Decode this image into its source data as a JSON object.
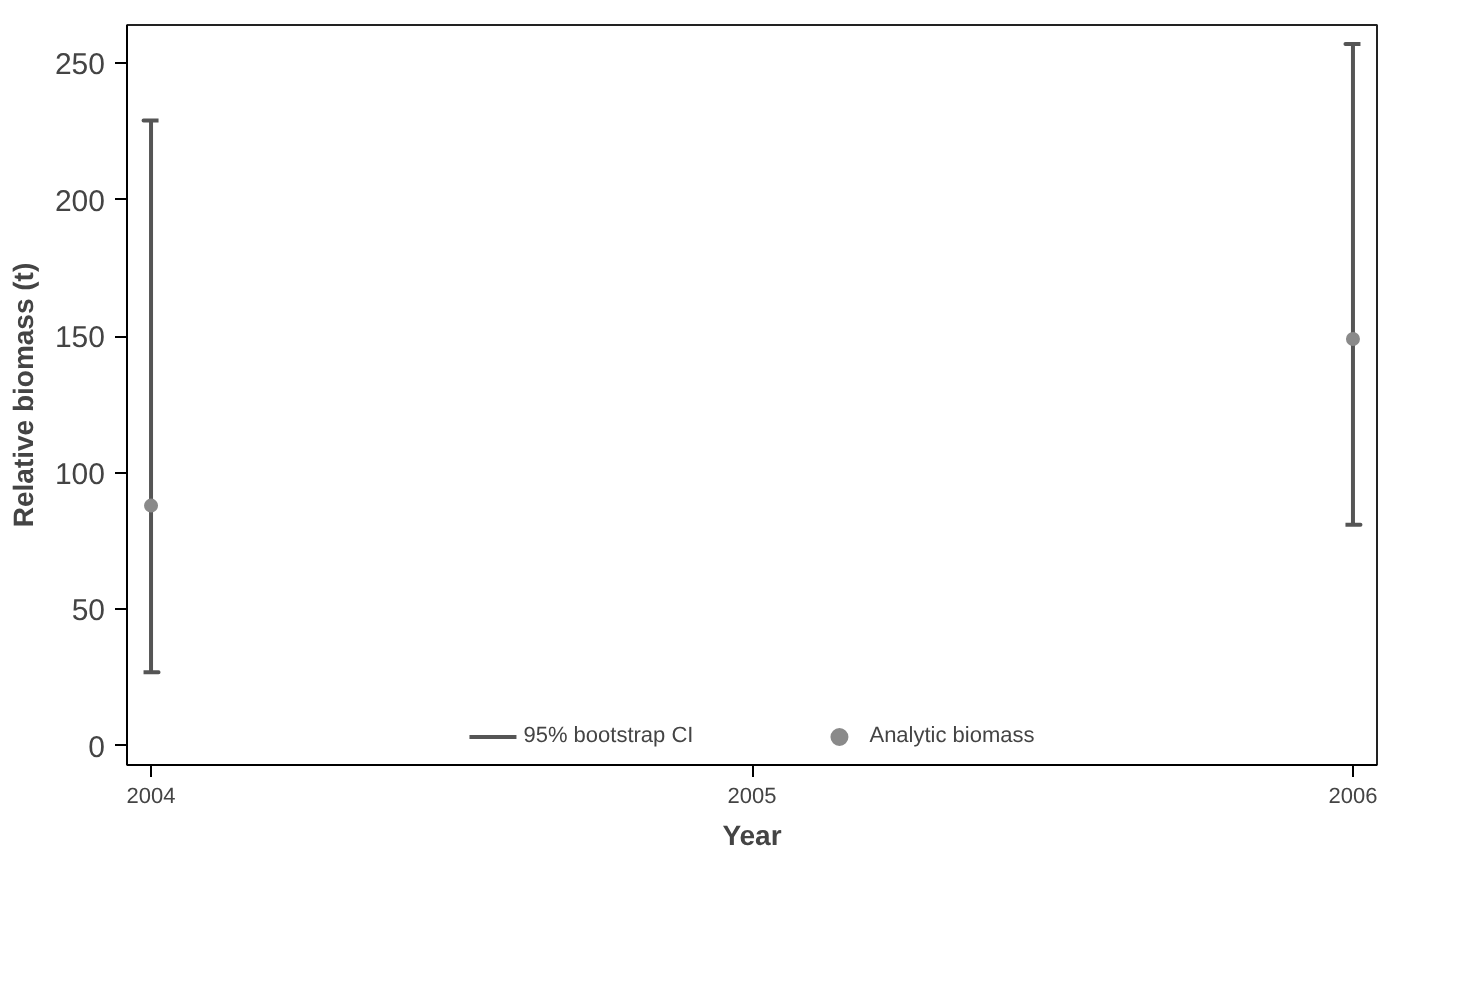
{
  "chart_data": {
    "type": "scatter",
    "xlabel": "Year",
    "ylabel": "Relative biomass (t)",
    "x": [
      2004,
      2006
    ],
    "series": [
      {
        "name": "Analytic biomass",
        "color": "#8a8a8a",
        "values": [
          88,
          149
        ],
        "errors": [
          [
            27,
            229
          ],
          [
            81,
            257
          ]
        ]
      }
    ],
    "annotations": [
      "95% bootstrap CI"
    ],
    "xlim": [
      2003.96,
      2006.04
    ],
    "ylim": [
      -7,
      264
    ],
    "xticks": [
      2004,
      2005,
      2006
    ],
    "yticks": [
      0,
      50,
      100,
      150,
      200,
      250
    ],
    "grid": false,
    "legend": "bottom",
    "marker": "circle"
  }
}
